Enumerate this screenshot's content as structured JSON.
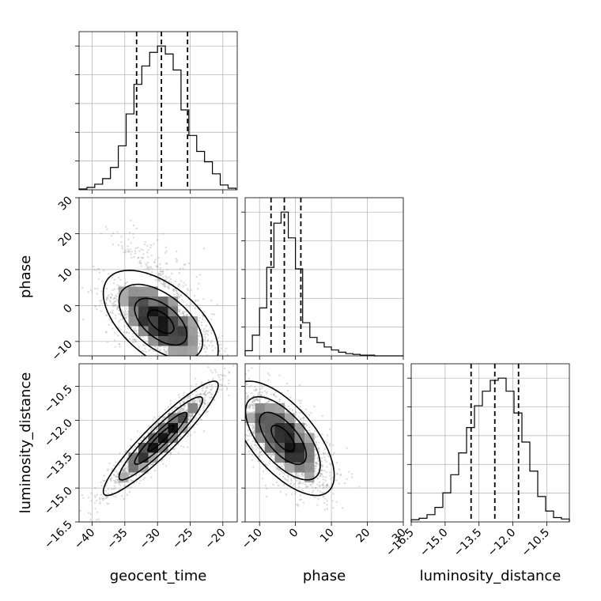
{
  "chart_data": {
    "type": "corner",
    "parameters": [
      "geocent_time",
      "phase",
      "luminosity_distance"
    ],
    "axes": {
      "geocent_time": {
        "label": "geocent_time",
        "range": [
          -42,
          -17.8
        ],
        "ticks": [
          -40,
          -35,
          -30,
          -25,
          -20
        ],
        "tick_labels": [
          "−40",
          "−35",
          "−30",
          "−25",
          "−20"
        ]
      },
      "phase": {
        "label": "phase",
        "range": [
          -14,
          30
        ],
        "ticks": [
          -10,
          0,
          10,
          20,
          30
        ],
        "tick_labels": [
          "−10",
          "0",
          "10",
          "20",
          "30"
        ]
      },
      "luminosity_distance": {
        "label": "luminosity_distance",
        "range": [
          -16.5,
          -9.5
        ],
        "ticks": [
          -16.5,
          -15.0,
          -13.5,
          -12.0,
          -10.5
        ],
        "tick_labels": [
          "−16.5",
          "−15.0",
          "−13.5",
          "−12.0",
          "−10.5"
        ]
      }
    },
    "histograms": [
      {
        "parameter": "geocent_time",
        "bin_edges": [
          -42,
          -40.8,
          -39.6,
          -38.4,
          -37.2,
          -36,
          -34.8,
          -33.6,
          -32.4,
          -31.2,
          -30,
          -28.8,
          -27.6,
          -26.4,
          -25.2,
          -24,
          -22.8,
          -21.6,
          -20.4,
          -19.2,
          -18
        ],
        "counts": [
          1,
          3,
          7,
          14,
          28,
          55,
          95,
          132,
          155,
          172,
          180,
          170,
          150,
          100,
          68,
          48,
          35,
          20,
          6,
          2
        ],
        "quantiles": [
          -33.2,
          -29.4,
          -25.4
        ]
      },
      {
        "parameter": "phase",
        "bin_edges": [
          -14,
          -12,
          -10,
          -8,
          -6,
          -4,
          -2,
          0,
          2,
          4,
          6,
          8,
          10,
          12,
          14,
          16,
          18,
          20,
          22,
          24,
          26,
          28,
          30
        ],
        "counts": [
          7,
          28,
          65,
          120,
          180,
          195,
          160,
          118,
          45,
          25,
          18,
          12,
          8,
          5,
          3,
          2,
          1,
          1,
          0,
          0,
          0,
          0
        ],
        "quantiles": [
          -6.8,
          -3.1,
          1.5
        ]
      },
      {
        "parameter": "luminosity_distance",
        "bin_edges": [
          -16.5,
          -16.15,
          -15.8,
          -15.45,
          -15.1,
          -14.75,
          -14.4,
          -14.05,
          -13.7,
          -13.35,
          -13.0,
          -12.65,
          -12.3,
          -11.95,
          -11.6,
          -11.25,
          -10.9,
          -10.55,
          -10.2,
          -9.85,
          -9.5
        ],
        "counts": [
          3,
          5,
          10,
          20,
          40,
          65,
          95,
          130,
          160,
          180,
          195,
          198,
          180,
          150,
          110,
          70,
          35,
          15,
          6,
          4
        ],
        "quantiles": [
          -13.85,
          -12.8,
          -11.75
        ]
      }
    ],
    "pairs": [
      {
        "x": "geocent_time",
        "y": "phase",
        "center": [
          -29.5,
          -4.5
        ],
        "sd": [
          4.0,
          6.5
        ],
        "corr": -0.55
      },
      {
        "x": "geocent_time",
        "y": "luminosity_distance",
        "center": [
          -29.5,
          -12.8
        ],
        "sd": [
          4.0,
          1.15
        ],
        "corr": 0.93
      },
      {
        "x": "phase",
        "y": "luminosity_distance",
        "center": [
          -3.5,
          -12.8
        ],
        "sd": [
          6.5,
          1.15
        ],
        "corr": -0.65
      }
    ],
    "grid": true,
    "colors": {
      "line": "#000000",
      "grid": "#b0b0b0",
      "sample_point": "#9a9a9a"
    }
  }
}
